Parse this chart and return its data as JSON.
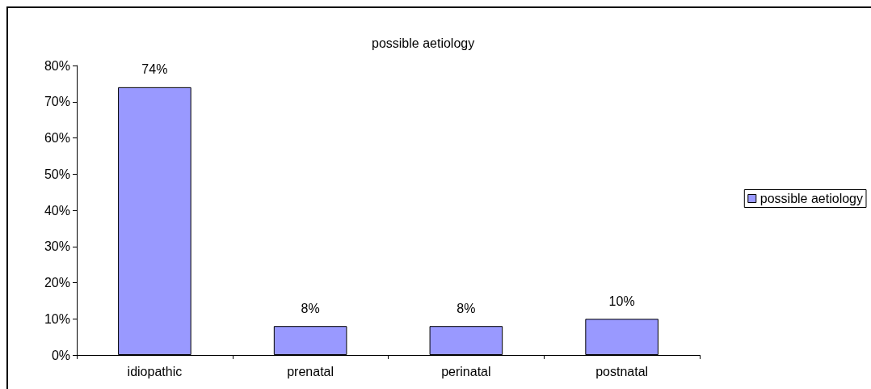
{
  "chart_data": {
    "type": "bar",
    "title": "possible aetiology",
    "categories": [
      "idiopathic",
      "prenatal",
      "perinatal",
      "postnatal"
    ],
    "series": [
      {
        "name": "possible aetiology",
        "color": "#9999ff",
        "values": [
          74,
          8,
          8,
          10
        ],
        "value_labels": [
          "74%",
          "8%",
          "8%",
          "10%"
        ]
      }
    ],
    "ylim": [
      0,
      80
    ],
    "yticks": [
      {
        "value": 0,
        "label": "0%"
      },
      {
        "value": 10,
        "label": "10%"
      },
      {
        "value": 20,
        "label": "20%"
      },
      {
        "value": 30,
        "label": "30%"
      },
      {
        "value": 40,
        "label": "40%"
      },
      {
        "value": 50,
        "label": "50%"
      },
      {
        "value": 60,
        "label": "60%"
      },
      {
        "value": 70,
        "label": "70%"
      },
      {
        "value": 80,
        "label": "80%"
      }
    ],
    "grid": false,
    "legend": "right"
  }
}
